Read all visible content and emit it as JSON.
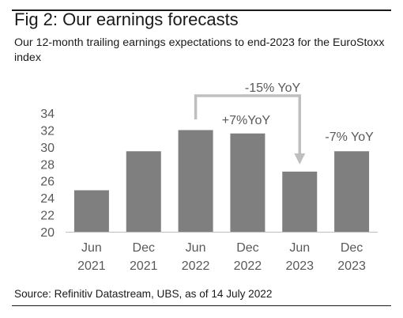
{
  "header": {
    "title": "Fig 2: Our earnings forecasts",
    "subtitle": "Our 12-month trailing earnings expectations to end-2023 for the EuroStoxx index"
  },
  "footer": {
    "source": "Source: Refinitiv Datastream, UBS, as of 14 July 2022"
  },
  "chart_data": {
    "type": "bar",
    "categories": [
      [
        "Jun",
        "2021"
      ],
      [
        "Dec",
        "2021"
      ],
      [
        "Jun",
        "2022"
      ],
      [
        "Dec",
        "2022"
      ],
      [
        "Jun",
        "2023"
      ],
      [
        "Dec",
        "2023"
      ]
    ],
    "values": [
      24.9,
      29.5,
      32.0,
      31.6,
      27.1,
      29.5
    ],
    "ylim": [
      20,
      34
    ],
    "yticks": [
      20,
      22,
      24,
      26,
      28,
      30,
      32,
      34
    ],
    "grid": false,
    "annotations": [
      {
        "text": "+7%YoY",
        "near_category": 3
      },
      {
        "text": "-15% YoY",
        "from_category": 2,
        "to_category": 4,
        "type": "arrow"
      },
      {
        "text": "-7% YoY",
        "near_category": 5
      }
    ],
    "colors": {
      "bar": "#7f7f7f",
      "arrow": "#bfbfbf",
      "axis": "#bfbfbf",
      "text": "#595959"
    }
  }
}
